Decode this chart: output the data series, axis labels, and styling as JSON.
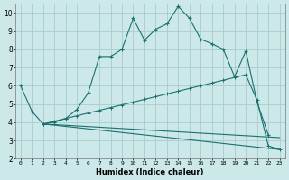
{
  "title": "",
  "xlabel": "Humidex (Indice chaleur)",
  "bg_color": "#cce8e8",
  "grid_color": "#aacccc",
  "line_color": "#1a7070",
  "xlim": [
    -0.5,
    23.5
  ],
  "ylim": [
    2,
    10.5
  ],
  "yticks": [
    2,
    3,
    4,
    5,
    6,
    7,
    8,
    9,
    10
  ],
  "xticks": [
    0,
    1,
    2,
    3,
    4,
    5,
    6,
    7,
    8,
    9,
    10,
    11,
    12,
    13,
    14,
    15,
    16,
    17,
    18,
    19,
    20,
    21,
    22,
    23
  ],
  "line1_x": [
    0,
    1,
    2,
    3,
    4,
    5,
    6,
    7,
    8,
    9,
    10,
    11,
    12,
    13,
    14,
    15,
    16,
    17,
    18,
    19,
    20,
    21,
    22
  ],
  "line1_y": [
    6.0,
    4.6,
    3.9,
    4.0,
    4.2,
    4.7,
    5.6,
    7.6,
    7.6,
    8.0,
    9.7,
    8.5,
    9.1,
    9.4,
    10.35,
    9.7,
    8.55,
    8.3,
    8.0,
    6.5,
    7.9,
    5.1,
    3.3
  ],
  "line2_x": [
    2,
    3,
    4,
    5,
    6,
    7,
    8,
    9,
    10,
    11,
    12,
    13,
    14,
    15,
    16,
    17,
    18,
    19,
    20,
    21,
    22,
    23
  ],
  "line2_y": [
    3.9,
    4.05,
    4.2,
    4.35,
    4.5,
    4.65,
    4.8,
    4.95,
    5.1,
    5.25,
    5.4,
    5.55,
    5.7,
    5.85,
    6.0,
    6.15,
    6.3,
    6.45,
    6.6,
    5.2,
    2.7,
    2.5
  ],
  "line3_x": [
    2,
    23
  ],
  "line3_y": [
    3.9,
    3.15
  ],
  "line4_x": [
    2,
    23
  ],
  "line4_y": [
    3.9,
    2.5
  ]
}
